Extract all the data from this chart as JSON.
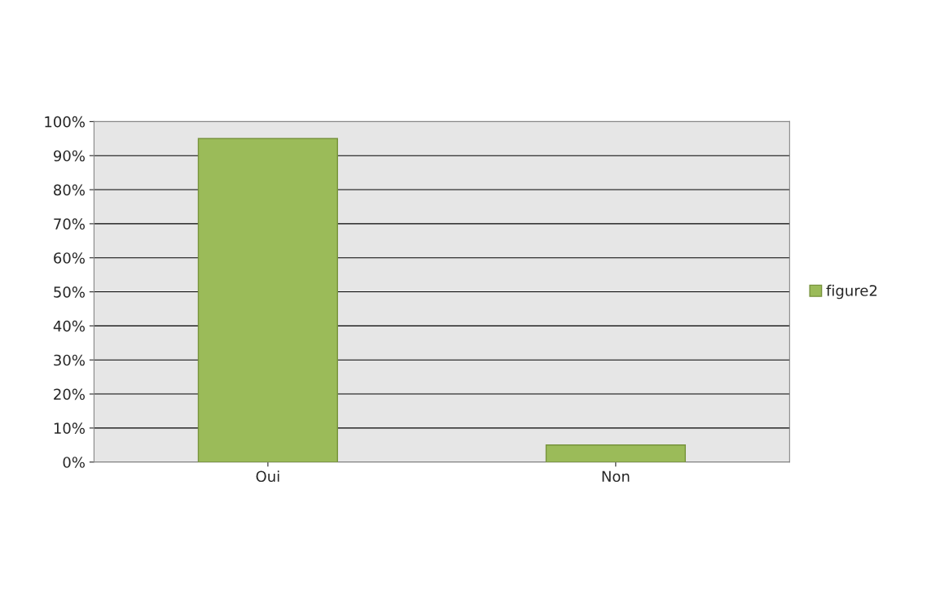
{
  "chart_data": {
    "type": "bar",
    "categories": [
      "Oui",
      "Non"
    ],
    "series": [
      {
        "name": "figure2",
        "color": "#9bbb59",
        "values": [
          95,
          5
        ]
      }
    ],
    "ylim": [
      0,
      100
    ],
    "yticks": [
      {
        "value": 0,
        "label": "0%"
      },
      {
        "value": 10,
        "label": "10%"
      },
      {
        "value": 20,
        "label": "20%"
      },
      {
        "value": 30,
        "label": "30%"
      },
      {
        "value": 40,
        "label": "40%"
      },
      {
        "value": 50,
        "label": "50%"
      },
      {
        "value": 60,
        "label": "60%"
      },
      {
        "value": 70,
        "label": "70%"
      },
      {
        "value": 80,
        "label": "80%"
      },
      {
        "value": 90,
        "label": "90%"
      },
      {
        "value": 100,
        "label": "100%"
      }
    ],
    "grid": "y",
    "legend": "right"
  }
}
